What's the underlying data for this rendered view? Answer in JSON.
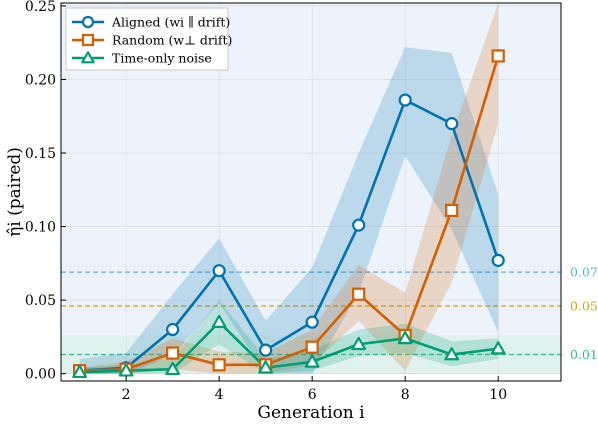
{
  "chart_data": {
    "type": "line",
    "xlabel": "Generation i",
    "ylabel": "η̂i (paired)",
    "xlim": [
      0.6,
      11.35
    ],
    "ylim": [
      -0.005,
      0.252
    ],
    "xticks": [
      2,
      4,
      6,
      8,
      10
    ],
    "xtick_labels": [
      "2",
      "4",
      "6",
      "8",
      "10"
    ],
    "yticks": [
      0.0,
      0.05,
      0.1,
      0.15,
      0.2,
      0.25
    ],
    "ytick_labels": [
      "0.00",
      "0.05",
      "0.10",
      "0.15",
      "0.20",
      "0.25"
    ],
    "grid": true,
    "legend": {
      "placement": "top-left"
    },
    "x": [
      1,
      2,
      3,
      4,
      5,
      6,
      7,
      8,
      9,
      10
    ],
    "series": [
      {
        "name": "Aligned (wi ∥ drift)",
        "marker": "circle",
        "color": "#0072b2",
        "values": [
          0.002,
          0.004,
          0.03,
          0.07,
          0.016,
          0.035,
          0.101,
          0.186,
          0.17,
          0.077
        ],
        "band_low": [
          0.0,
          0.0,
          0.012,
          0.048,
          0.0,
          0.0,
          0.055,
          0.148,
          0.098,
          0.028
        ],
        "band_high": [
          0.01,
          0.014,
          0.054,
          0.092,
          0.036,
          0.072,
          0.15,
          0.222,
          0.218,
          0.122
        ]
      },
      {
        "name": "Random (w⊥ drift)",
        "marker": "square",
        "color": "#d55e00",
        "values": [
          0.002,
          0.003,
          0.014,
          0.006,
          0.006,
          0.018,
          0.054,
          0.026,
          0.111,
          0.216
        ],
        "band_low": [
          0.0,
          0.0,
          0.003,
          0.0,
          0.0,
          0.006,
          0.036,
          0.002,
          0.062,
          0.17
        ],
        "band_high": [
          0.004,
          0.008,
          0.024,
          0.015,
          0.014,
          0.03,
          0.074,
          0.055,
          0.162,
          0.252
        ]
      },
      {
        "name": "Time-only noise",
        "marker": "triangle",
        "color": "#009e73",
        "values": [
          0.001,
          0.002,
          0.003,
          0.035,
          0.004,
          0.008,
          0.02,
          0.024,
          0.013,
          0.017
        ],
        "band_low": [
          0.0,
          0.0,
          0.0,
          0.02,
          0.0,
          0.002,
          0.012,
          0.014,
          0.005,
          0.01
        ],
        "band_high": [
          0.004,
          0.006,
          0.01,
          0.05,
          0.01,
          0.016,
          0.03,
          0.034,
          0.022,
          0.024
        ]
      }
    ],
    "reference_lines": [
      {
        "value": 0.069,
        "label": "0.07",
        "color": "#56b4e9",
        "band": [
          0.0,
          0.252
        ],
        "band_color": "#dde9f6"
      },
      {
        "value": 0.046,
        "label": "0.05",
        "color": "#e69f00"
      },
      {
        "value": 0.013,
        "label": "0.01",
        "color": "#2fbf8a",
        "band": [
          0.0,
          0.026
        ],
        "band_color": "#d7f0e4"
      }
    ]
  }
}
